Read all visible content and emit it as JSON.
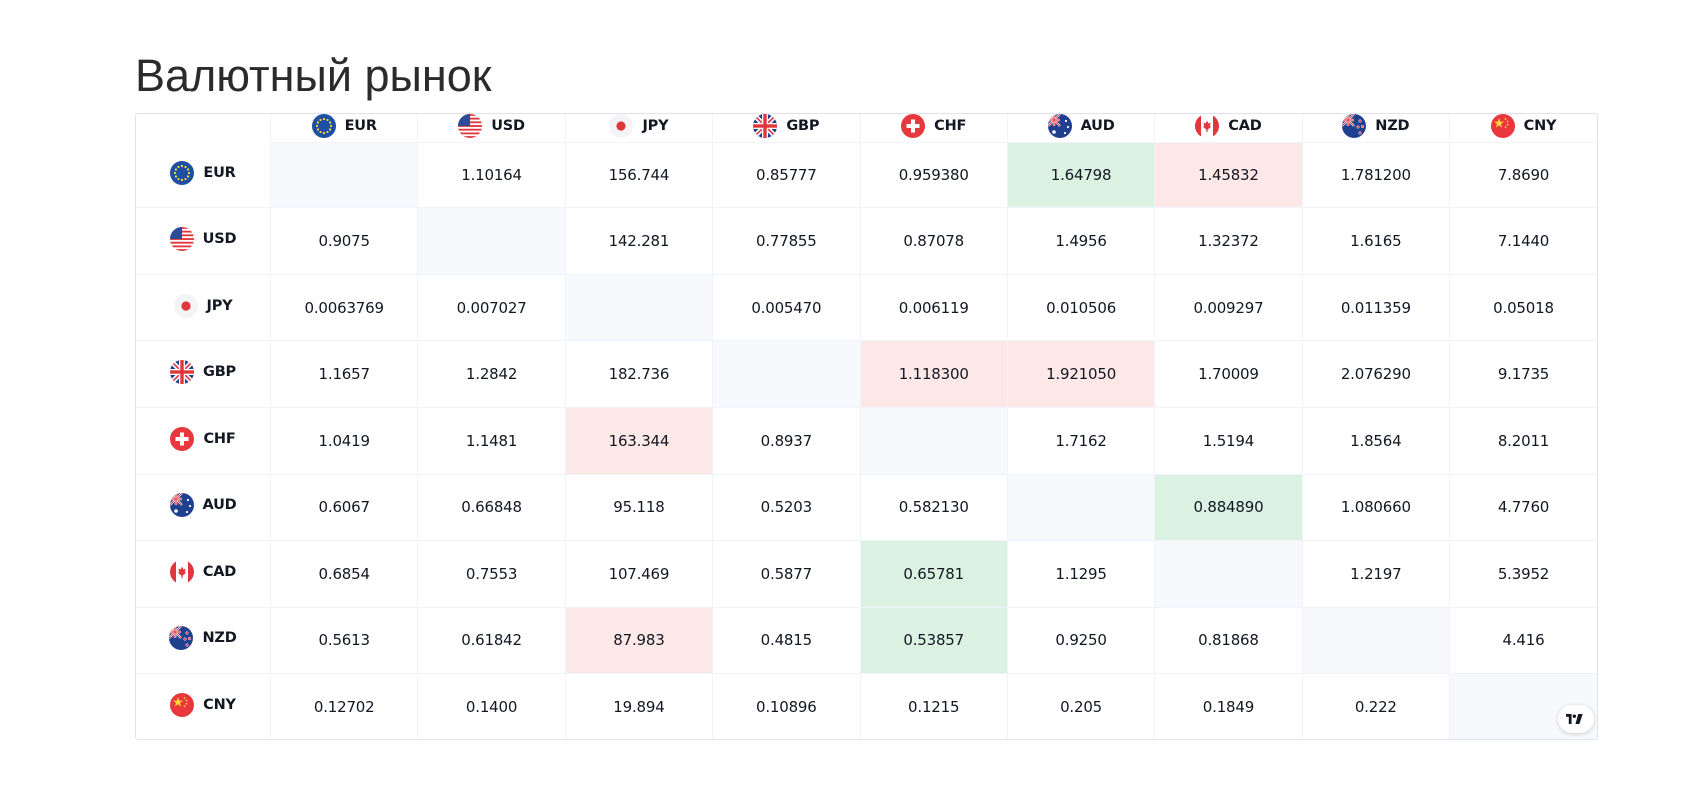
{
  "page": {
    "title": "Валютный рынок"
  },
  "currencies": [
    {
      "code": "EUR",
      "flag": "eu-flag-icon"
    },
    {
      "code": "USD",
      "flag": "us-flag-icon"
    },
    {
      "code": "JPY",
      "flag": "jp-flag-icon"
    },
    {
      "code": "GBP",
      "flag": "gb-flag-icon"
    },
    {
      "code": "CHF",
      "flag": "ch-flag-icon"
    },
    {
      "code": "AUD",
      "flag": "au-flag-icon"
    },
    {
      "code": "CAD",
      "flag": "ca-flag-icon"
    },
    {
      "code": "NZD",
      "flag": "nz-flag-icon"
    },
    {
      "code": "CNY",
      "flag": "cn-flag-icon"
    }
  ],
  "rows": [
    {
      "base": "EUR",
      "cells": [
        {
          "value": "",
          "state": "diag"
        },
        {
          "value": "1.10164",
          "state": "none"
        },
        {
          "value": "156.744",
          "state": "none"
        },
        {
          "value": "0.85777",
          "state": "none"
        },
        {
          "value": "0.959380",
          "state": "none"
        },
        {
          "value": "1.64798",
          "state": "up"
        },
        {
          "value": "1.45832",
          "state": "down"
        },
        {
          "value": "1.781200",
          "state": "none"
        },
        {
          "value": "7.8690",
          "state": "none"
        }
      ]
    },
    {
      "base": "USD",
      "cells": [
        {
          "value": "0.9075",
          "state": "none"
        },
        {
          "value": "",
          "state": "diag"
        },
        {
          "value": "142.281",
          "state": "none"
        },
        {
          "value": "0.77855",
          "state": "none"
        },
        {
          "value": "0.87078",
          "state": "none"
        },
        {
          "value": "1.4956",
          "state": "none"
        },
        {
          "value": "1.32372",
          "state": "none"
        },
        {
          "value": "1.6165",
          "state": "none"
        },
        {
          "value": "7.1440",
          "state": "none"
        }
      ]
    },
    {
      "base": "JPY",
      "cells": [
        {
          "value": "0.0063769",
          "state": "none"
        },
        {
          "value": "0.007027",
          "state": "none"
        },
        {
          "value": "",
          "state": "diag"
        },
        {
          "value": "0.005470",
          "state": "none"
        },
        {
          "value": "0.006119",
          "state": "none"
        },
        {
          "value": "0.010506",
          "state": "none"
        },
        {
          "value": "0.009297",
          "state": "none"
        },
        {
          "value": "0.011359",
          "state": "none"
        },
        {
          "value": "0.05018",
          "state": "none"
        }
      ]
    },
    {
      "base": "GBP",
      "cells": [
        {
          "value": "1.1657",
          "state": "none"
        },
        {
          "value": "1.2842",
          "state": "none"
        },
        {
          "value": "182.736",
          "state": "none"
        },
        {
          "value": "",
          "state": "diag"
        },
        {
          "value": "1.118300",
          "state": "down"
        },
        {
          "value": "1.921050",
          "state": "down"
        },
        {
          "value": "1.70009",
          "state": "none"
        },
        {
          "value": "2.076290",
          "state": "none"
        },
        {
          "value": "9.1735",
          "state": "none"
        }
      ]
    },
    {
      "base": "CHF",
      "cells": [
        {
          "value": "1.0419",
          "state": "none"
        },
        {
          "value": "1.1481",
          "state": "none"
        },
        {
          "value": "163.344",
          "state": "down"
        },
        {
          "value": "0.8937",
          "state": "none"
        },
        {
          "value": "",
          "state": "diag"
        },
        {
          "value": "1.7162",
          "state": "none"
        },
        {
          "value": "1.5194",
          "state": "none"
        },
        {
          "value": "1.8564",
          "state": "none"
        },
        {
          "value": "8.2011",
          "state": "none"
        }
      ]
    },
    {
      "base": "AUD",
      "cells": [
        {
          "value": "0.6067",
          "state": "none"
        },
        {
          "value": "0.66848",
          "state": "none"
        },
        {
          "value": "95.118",
          "state": "none"
        },
        {
          "value": "0.5203",
          "state": "none"
        },
        {
          "value": "0.582130",
          "state": "none"
        },
        {
          "value": "",
          "state": "diag"
        },
        {
          "value": "0.884890",
          "state": "up"
        },
        {
          "value": "1.080660",
          "state": "none"
        },
        {
          "value": "4.7760",
          "state": "none"
        }
      ]
    },
    {
      "base": "CAD",
      "cells": [
        {
          "value": "0.6854",
          "state": "none"
        },
        {
          "value": "0.7553",
          "state": "none"
        },
        {
          "value": "107.469",
          "state": "none"
        },
        {
          "value": "0.5877",
          "state": "none"
        },
        {
          "value": "0.65781",
          "state": "up"
        },
        {
          "value": "1.1295",
          "state": "none"
        },
        {
          "value": "",
          "state": "diag"
        },
        {
          "value": "1.2197",
          "state": "none"
        },
        {
          "value": "5.3952",
          "state": "none"
        }
      ]
    },
    {
      "base": "NZD",
      "cells": [
        {
          "value": "0.5613",
          "state": "none"
        },
        {
          "value": "0.61842",
          "state": "none"
        },
        {
          "value": "87.983",
          "state": "down"
        },
        {
          "value": "0.4815",
          "state": "none"
        },
        {
          "value": "0.53857",
          "state": "up"
        },
        {
          "value": "0.9250",
          "state": "none"
        },
        {
          "value": "0.81868",
          "state": "none"
        },
        {
          "value": "",
          "state": "diag"
        },
        {
          "value": "4.416",
          "state": "none"
        }
      ]
    },
    {
      "base": "CNY",
      "cells": [
        {
          "value": "0.12702",
          "state": "none"
        },
        {
          "value": "0.1400",
          "state": "none"
        },
        {
          "value": "19.894",
          "state": "none"
        },
        {
          "value": "0.10896",
          "state": "none"
        },
        {
          "value": "0.1215",
          "state": "none"
        },
        {
          "value": "0.205",
          "state": "none"
        },
        {
          "value": "0.1849",
          "state": "none"
        },
        {
          "value": "0.222",
          "state": "none"
        },
        {
          "value": "",
          "state": "diag"
        }
      ]
    }
  ],
  "colors": {
    "up_bg": "#dbf2e3",
    "down_bg": "#fde8e8",
    "diag_bg": "#f8f9fd",
    "border": "#e0e3eb"
  },
  "brand": {
    "logo_icon": "tradingview-logo-icon"
  }
}
